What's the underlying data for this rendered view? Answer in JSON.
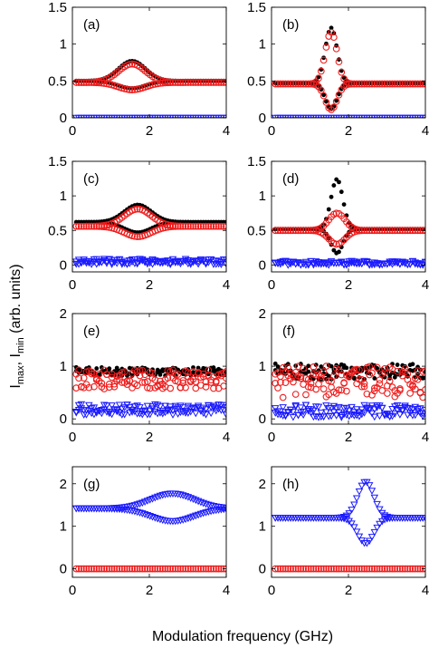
{
  "figure": {
    "xlabel": "Modulation frequency (GHz)",
    "ylabel_base": "I",
    "ylabel_sub1": "max",
    "ylabel_sep": ", I",
    "ylabel_sub2": "min",
    "ylabel_tail": " (arb. units)"
  },
  "colors": {
    "black_dots": "#000000",
    "red_circles": "#ee1c1c",
    "blue_triangles": "#1a1aff"
  },
  "chart_data": [
    {
      "type": "scatter",
      "label": "(a)",
      "xlim": [
        0,
        4
      ],
      "ylim": [
        0,
        1.5
      ],
      "xticks": [
        0,
        2,
        4
      ],
      "yticks": [
        0,
        0.5,
        1,
        1.5
      ],
      "xtick_labels": [
        "0",
        "2",
        "4"
      ],
      "ytick_labels": [
        "0",
        "0.5",
        "1",
        "1.5"
      ],
      "x_range": [
        0.1,
        4.0
      ],
      "points": 60,
      "series": [
        {
          "marker": "black-dot",
          "base": 0.5,
          "peak": {
            "x": 1.55,
            "amp_upper": 0.27,
            "amp_lower": -0.1,
            "width": 0.5
          }
        },
        {
          "marker": "red-circle",
          "base": 0.48,
          "peak": {
            "x": 1.55,
            "amp_upper": 0.25,
            "amp_lower": -0.1,
            "width": 0.5
          }
        },
        {
          "marker": "blue-triangle",
          "base": 0.0
        }
      ]
    },
    {
      "type": "scatter",
      "label": "(b)",
      "xlim": [
        0,
        4
      ],
      "ylim": [
        0,
        1.5
      ],
      "xticks": [
        0,
        2,
        4
      ],
      "yticks": [
        0,
        0.5,
        1,
        1.5
      ],
      "xtick_labels": [
        "0",
        "2",
        "4"
      ],
      "ytick_labels": [
        "0",
        "0.5",
        "1",
        "1.5"
      ],
      "x_range": [
        0.1,
        4.0
      ],
      "points": 60,
      "series": [
        {
          "marker": "black-dot",
          "base": 0.47,
          "peak": {
            "x": 1.55,
            "amp_upper": 0.75,
            "amp_lower": -0.35,
            "width": 0.22
          }
        },
        {
          "marker": "red-circle",
          "base": 0.46,
          "peak": {
            "x": 1.55,
            "amp_upper": 0.7,
            "amp_lower": -0.35,
            "width": 0.22
          }
        },
        {
          "marker": "blue-triangle",
          "base": 0.0
        }
      ]
    },
    {
      "type": "scatter",
      "label": "(c)",
      "xlim": [
        0,
        4
      ],
      "ylim": [
        -0.1,
        1.5
      ],
      "xticks": [
        0,
        2,
        4
      ],
      "yticks": [
        0,
        0.5,
        1,
        1.5
      ],
      "xtick_labels": [
        "0",
        "2",
        "4"
      ],
      "ytick_labels": [
        "0",
        "0.5",
        "1",
        "1.5"
      ],
      "x_range": [
        0.1,
        4.0
      ],
      "points": 60,
      "series": [
        {
          "marker": "black-dot",
          "base": 0.62,
          "peak": {
            "x": 1.7,
            "amp_upper": 0.25,
            "amp_lower": -0.15,
            "width": 0.5
          }
        },
        {
          "marker": "red-circle",
          "base": 0.56,
          "peak": {
            "x": 1.7,
            "amp_upper": 0.25,
            "amp_lower": -0.15,
            "width": 0.5
          }
        },
        {
          "marker": "blue-triangle",
          "base": 0.05,
          "spread": 0.04
        }
      ]
    },
    {
      "type": "scatter",
      "label": "(d)",
      "xlim": [
        0,
        4
      ],
      "ylim": [
        -0.1,
        1.5
      ],
      "xticks": [
        0,
        2,
        4
      ],
      "yticks": [
        0,
        0.5,
        1,
        1.5
      ],
      "xtick_labels": [
        "0",
        "2",
        "4"
      ],
      "ytick_labels": [
        "0",
        "0.5",
        "1",
        "1.5"
      ],
      "x_range": [
        0.1,
        4.0
      ],
      "points": 60,
      "series": [
        {
          "marker": "black-dot",
          "base": 0.52,
          "peak": {
            "x": 1.7,
            "amp_upper": 0.72,
            "amp_lower": -0.35,
            "width": 0.22
          }
        },
        {
          "marker": "red-circle",
          "base": 0.5,
          "peak": {
            "x": 1.7,
            "amp_upper": 0.25,
            "amp_lower": -0.2,
            "width": 0.3
          }
        },
        {
          "marker": "blue-triangle",
          "base": 0.03,
          "spread": 0.03
        }
      ]
    },
    {
      "type": "scatter",
      "label": "(e)",
      "xlim": [
        0,
        4
      ],
      "ylim": [
        -0.1,
        2
      ],
      "xticks": [
        0,
        2,
        4
      ],
      "yticks": [
        0,
        1,
        2
      ],
      "xtick_labels": [
        "0",
        "2",
        "4"
      ],
      "ytick_labels": [
        "0",
        "1",
        "2"
      ],
      "x_range": [
        0.1,
        4.0
      ],
      "points": 60,
      "series": [
        {
          "marker": "black-dot",
          "base": 0.9,
          "spread": 0.08
        },
        {
          "marker": "red-circle",
          "base": 0.75,
          "spread": 0.18
        },
        {
          "marker": "blue-triangle",
          "base": 0.18,
          "spread": 0.1
        }
      ]
    },
    {
      "type": "scatter",
      "label": "(f)",
      "xlim": [
        0,
        4
      ],
      "ylim": [
        -0.1,
        2
      ],
      "xticks": [
        0,
        2,
        4
      ],
      "yticks": [
        0,
        1,
        2
      ],
      "xtick_labels": [
        "0",
        "2",
        "4"
      ],
      "ytick_labels": [
        "0",
        "1",
        "2"
      ],
      "x_range": [
        0.1,
        4.0
      ],
      "points": 60,
      "series": [
        {
          "marker": "black-dot",
          "base": 0.9,
          "spread": 0.15
        },
        {
          "marker": "red-circle",
          "base": 0.7,
          "spread": 0.3
        },
        {
          "marker": "blue-triangle",
          "base": 0.15,
          "spread": 0.12
        }
      ]
    },
    {
      "type": "scatter",
      "label": "(g)",
      "xlim": [
        0,
        4
      ],
      "ylim": [
        -0.2,
        2.4
      ],
      "xticks": [
        0,
        2,
        4
      ],
      "yticks": [
        0,
        1,
        2
      ],
      "xtick_labels": [
        "0",
        "2",
        "4"
      ],
      "ytick_labels": [
        "0",
        "1",
        "2"
      ],
      "x_range": [
        0.1,
        4.0
      ],
      "points": 60,
      "series": [
        {
          "marker": "red-circle",
          "base": 0.0
        },
        {
          "marker": "blue-triangle",
          "base": 1.42,
          "peak": {
            "x": 2.6,
            "amp_upper": 0.35,
            "amp_lower": -0.3,
            "width": 0.8
          }
        }
      ]
    },
    {
      "type": "scatter",
      "label": "(h)",
      "xlim": [
        0,
        4
      ],
      "ylim": [
        -0.2,
        2.4
      ],
      "xticks": [
        0,
        2,
        4
      ],
      "yticks": [
        0,
        1,
        2
      ],
      "xtick_labels": [
        "0",
        "2",
        "4"
      ],
      "ytick_labels": [
        "0",
        "1",
        "2"
      ],
      "x_range": [
        0.1,
        4.0
      ],
      "points": 60,
      "series": [
        {
          "marker": "red-circle",
          "base": 0.0
        },
        {
          "marker": "blue-triangle",
          "base": 1.2,
          "peak": {
            "x": 2.45,
            "amp_upper": 0.85,
            "amp_lower": -0.6,
            "width": 0.3
          }
        }
      ]
    }
  ]
}
